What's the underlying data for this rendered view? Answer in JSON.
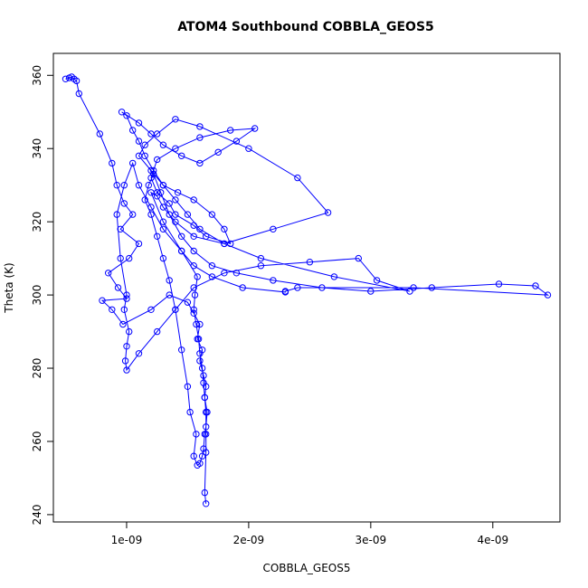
{
  "chart_data": {
    "type": "scatter",
    "title": "ATOM4 Southbound COBBLA_GEOS5",
    "xlabel": "COBBLA_GEOS5",
    "ylabel": "Theta (K)",
    "xlim": [
      4e-10,
      4.55e-09
    ],
    "ylim": [
      238,
      366
    ],
    "x_ticks": [
      {
        "value": 1e-09,
        "label": "1e-09"
      },
      {
        "value": 2e-09,
        "label": "2e-09"
      },
      {
        "value": 3e-09,
        "label": "3e-09"
      },
      {
        "value": 4e-09,
        "label": "4e-09"
      }
    ],
    "y_ticks": [
      {
        "value": 240,
        "label": "240"
      },
      {
        "value": 260,
        "label": "260"
      },
      {
        "value": 280,
        "label": "280"
      },
      {
        "value": 300,
        "label": "300"
      },
      {
        "value": 320,
        "label": "320"
      },
      {
        "value": 340,
        "label": "340"
      },
      {
        "value": 360,
        "label": "360"
      }
    ],
    "grid": false,
    "legend": "none",
    "series": [
      {
        "color": "#0000ff",
        "marker": "open-circle",
        "connected": true,
        "x": [
          5e-10,
          5.3e-10,
          5.5e-10,
          5.7e-10,
          5.9e-10,
          6.1e-10,
          7.8e-10,
          8.8e-10,
          9.2e-10,
          9.8e-10,
          1.05e-09,
          9.5e-10,
          1.1e-09,
          1.02e-09,
          8.5e-10,
          9.3e-10,
          1e-09,
          8e-10,
          8.8e-10,
          9.7e-10,
          1.2e-09,
          1.35e-09,
          1.5e-09,
          1.55e-09,
          1.6e-09,
          1.58e-09,
          1.62e-09,
          1.6e-09,
          1.63e-09,
          1.65e-09,
          1.64e-09,
          1.66e-09,
          1.65e-09,
          1.64e-09,
          1.63e-09,
          1.62e-09,
          1.6e-09,
          1.58e-09,
          1.55e-09,
          1.57e-09,
          1.52e-09,
          1.5e-09,
          1.45e-09,
          1.4e-09,
          1.35e-09,
          1.3e-09,
          1.25e-09,
          1.2e-09,
          1.15e-09,
          1.18e-09,
          1.22e-09,
          1.28e-09,
          1.35e-09,
          1.45e-09,
          1.55e-09,
          1.7e-09,
          1.9e-09,
          2.2e-09,
          2.6e-09,
          3e-09,
          3.5e-09,
          4.05e-09,
          4.35e-09,
          4.45e-09,
          3.35e-09,
          2.4e-09,
          2.3e-09,
          2.3e-09,
          1.95e-09,
          1.7e-09,
          1.55e-09,
          1.45e-09,
          1.3e-09,
          1.2e-09,
          1.1e-09,
          1.05e-09,
          9.8e-10,
          9.2e-10,
          9.5e-10,
          1e-09,
          9.8e-10,
          1.02e-09,
          1e-09,
          9.9e-10,
          1e-09,
          1.1e-09,
          1.25e-09,
          1.4e-09,
          1.55e-09,
          1.8e-09,
          2.1e-09,
          2.5e-09,
          2.9e-09,
          3.05e-09,
          3.32e-09,
          2.7e-09,
          2.1e-09,
          1.8e-09,
          1.6e-09,
          1.5e-09,
          1.4e-09,
          1.3e-09,
          1.22e-09,
          1.15e-09,
          1.1e-09,
          1.05e-09,
          1e-09,
          9.6e-10,
          1.1e-09,
          1.2e-09,
          1.3e-09,
          1.45e-09,
          1.6e-09,
          1.75e-09,
          1.9e-09,
          2.05e-09,
          1.85e-09,
          1.6e-09,
          1.4e-09,
          1.25e-09,
          1.2e-09,
          1.25e-09,
          1.35e-09,
          1.4e-09,
          1.55e-09,
          1.65e-09,
          1.85e-09,
          1.8e-09,
          1.7e-09,
          1.55e-09,
          1.42e-09,
          1.3e-09,
          1.2e-09,
          1.1e-09,
          1.15e-09,
          1.25e-09,
          1.4e-09,
          1.6e-09,
          2e-09,
          2.4e-09,
          2.65e-09,
          2.2e-09,
          1.8e-09,
          1.55e-09,
          1.4e-09,
          1.3e-09,
          1.25e-09,
          1.2e-09,
          1.3e-09,
          1.45e-09,
          1.58e-09,
          1.56e-09,
          1.55e-09,
          1.57e-09,
          1.59e-09,
          1.6e-09,
          1.62e-09,
          1.63e-09,
          1.64e-09,
          1.65e-09,
          1.65e-09,
          1.65e-09,
          1.64e-09,
          1.65e-09
        ],
        "y": [
          359.0,
          359.3,
          359.6,
          359.0,
          358.5,
          355.0,
          344.0,
          336.0,
          330.0,
          325.0,
          322.0,
          318.0,
          314.0,
          310.0,
          306.0,
          302.0,
          299.0,
          298.5,
          296.0,
          292.0,
          296.0,
          300.0,
          298.0,
          295.0,
          292.0,
          288.0,
          285.0,
          282.0,
          278.0,
          275.0,
          272.0,
          268.0,
          264.0,
          262.0,
          258.0,
          256.0,
          254.0,
          253.5,
          256.0,
          262.0,
          268.0,
          275.0,
          285.0,
          296.0,
          304.0,
          310.0,
          316.0,
          322.0,
          326.0,
          330.0,
          333.0,
          328.0,
          322.0,
          316.0,
          312.0,
          308.0,
          306.0,
          304.0,
          302.0,
          301.0,
          302.0,
          303.0,
          302.5,
          300.0,
          302.0,
          302.0,
          301.0,
          300.8,
          302.0,
          305.0,
          308.0,
          312.0,
          318.0,
          324.0,
          330.0,
          336.0,
          330.0,
          322.0,
          310.0,
          300.0,
          296.0,
          290.0,
          286.0,
          282.0,
          279.5,
          284.0,
          290.0,
          296.0,
          302.0,
          306.0,
          308.0,
          309.0,
          310.0,
          304.0,
          301.0,
          305.0,
          310.0,
          314.0,
          318.0,
          322.0,
          326.0,
          330.0,
          334.0,
          338.0,
          342.0,
          345.0,
          349.0,
          350.0,
          347.0,
          344.0,
          341.0,
          338.0,
          336.0,
          339.0,
          342.0,
          345.5,
          345.0,
          343.0,
          340.0,
          337.0,
          332.0,
          328.0,
          325.0,
          322.0,
          319.0,
          316.0,
          314.0,
          318.0,
          322.0,
          326.0,
          328.0,
          330.0,
          334.0,
          338.0,
          341.0,
          344.0,
          348.0,
          346.0,
          340.0,
          332.0,
          322.5,
          318.0,
          314.0,
          316.0,
          320.0,
          324.0,
          327.0,
          328.0,
          320.0,
          312.0,
          305.0,
          300.0,
          296.0,
          292.0,
          288.0,
          284.0,
          280.0,
          276.0,
          272.0,
          268.0,
          262.0,
          257.0,
          246.0,
          243.0
        ]
      }
    ]
  }
}
